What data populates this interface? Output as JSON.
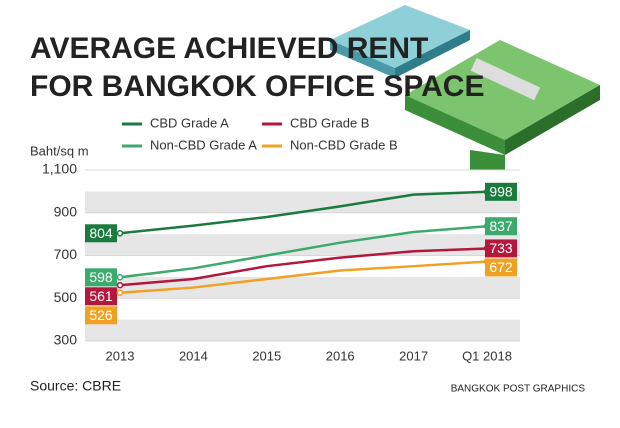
{
  "chart_data": {
    "type": "line",
    "title": [
      "AVERAGE ACHIEVED RENT",
      "FOR BANGKOK OFFICE SPACE"
    ],
    "y_label": "Baht/sq m",
    "categories": [
      "2013",
      "2014",
      "2015",
      "2016",
      "2017",
      "Q1 2018"
    ],
    "series": [
      {
        "name": "CBD Grade A",
        "color": "#1b7a3e",
        "values": [
          804,
          840,
          880,
          930,
          985,
          998
        ]
      },
      {
        "name": "Non-CBD Grade A",
        "color": "#3caa6c",
        "values": [
          598,
          640,
          700,
          760,
          810,
          837
        ]
      },
      {
        "name": "CBD Grade B",
        "color": "#b3173c",
        "values": [
          561,
          590,
          650,
          690,
          720,
          733
        ]
      },
      {
        "name": "Non-CBD Grade B",
        "color": "#f0a023",
        "values": [
          526,
          550,
          590,
          630,
          650,
          672
        ]
      }
    ],
    "ylim": [
      300,
      1100
    ],
    "yticks": [
      300,
      500,
      700,
      900,
      {
        "value": 1100,
        "label": "1,100"
      }
    ],
    "grid": true,
    "source": "Source: CBRE",
    "credit": "BANGKOK POST GRAPHICS"
  }
}
